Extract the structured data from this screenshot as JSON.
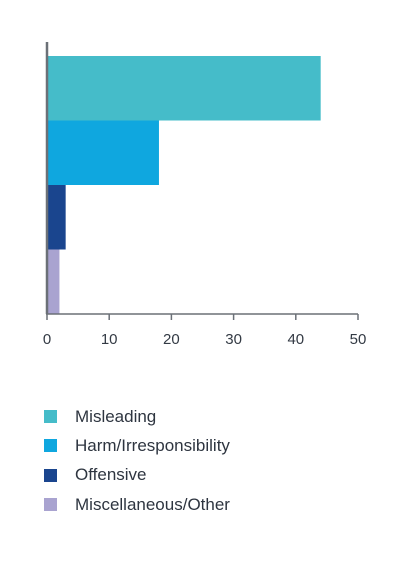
{
  "chart_data": {
    "type": "bar",
    "orientation": "horizontal",
    "categories": [
      "Misleading",
      "Harm/Irresponsibility",
      "Offensive",
      "Miscellaneous/Other"
    ],
    "values": [
      44,
      18,
      3,
      2
    ],
    "colors": [
      "#45bcc9",
      "#0fa7df",
      "#1a458e",
      "#a9a3d0"
    ],
    "xlim": [
      0,
      50
    ],
    "xticks": [
      "0",
      "10",
      "20",
      "30",
      "40",
      "50"
    ],
    "grid": false,
    "legend_position": "bottom-left"
  }
}
